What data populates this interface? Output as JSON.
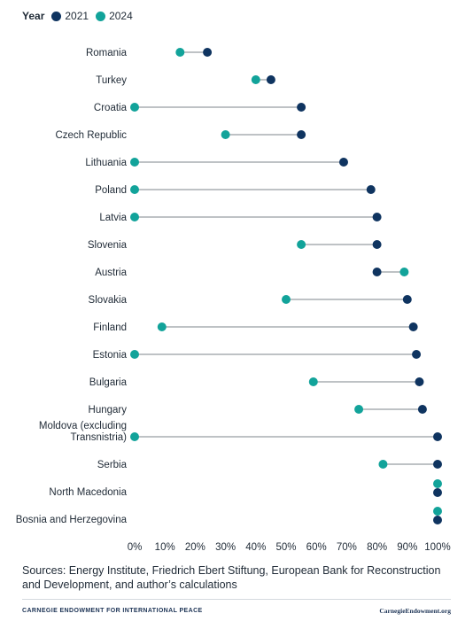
{
  "legend": {
    "title": "Year",
    "items": [
      {
        "label": "2021",
        "color": "#0f3460"
      },
      {
        "label": "2024",
        "color": "#12a39a"
      }
    ]
  },
  "chart_data": {
    "type": "dumbbell",
    "xlabel": "",
    "ylabel": "",
    "xlim": [
      0,
      100
    ],
    "x_ticks": [
      "0%",
      "10%",
      "20%",
      "30%",
      "40%",
      "50%",
      "60%",
      "70%",
      "80%",
      "90%",
      "100%"
    ],
    "grid": false,
    "legend_position": "top-left",
    "series": [
      {
        "name": "2021",
        "color": "#0f3460"
      },
      {
        "name": "2024",
        "color": "#12a39a"
      }
    ],
    "categories": [
      {
        "label": [
          "Romania"
        ],
        "v2021": 24,
        "v2024": 15
      },
      {
        "label": [
          "Turkey"
        ],
        "v2021": 45,
        "v2024": 40
      },
      {
        "label": [
          "Croatia"
        ],
        "v2021": 55,
        "v2024": 0
      },
      {
        "label": [
          "Czech Republic"
        ],
        "v2021": 55,
        "v2024": 30
      },
      {
        "label": [
          "Lithuania"
        ],
        "v2021": 69,
        "v2024": 0
      },
      {
        "label": [
          "Poland"
        ],
        "v2021": 78,
        "v2024": 0
      },
      {
        "label": [
          "Latvia"
        ],
        "v2021": 80,
        "v2024": 0
      },
      {
        "label": [
          "Slovenia"
        ],
        "v2021": 80,
        "v2024": 55
      },
      {
        "label": [
          "Austria"
        ],
        "v2021": 80,
        "v2024": 89
      },
      {
        "label": [
          "Slovakia"
        ],
        "v2021": 90,
        "v2024": 50
      },
      {
        "label": [
          "Finland"
        ],
        "v2021": 92,
        "v2024": 9
      },
      {
        "label": [
          "Estonia"
        ],
        "v2021": 93,
        "v2024": 0
      },
      {
        "label": [
          "Bulgaria"
        ],
        "v2021": 94,
        "v2024": 59
      },
      {
        "label": [
          "Hungary"
        ],
        "v2021": 95,
        "v2024": 74
      },
      {
        "label": [
          "Moldova (excluding",
          "Transnistria)"
        ],
        "v2021": 100,
        "v2024": 0
      },
      {
        "label": [
          "Serbia"
        ],
        "v2021": 100,
        "v2024": 82
      },
      {
        "label": [
          "North Macedonia"
        ],
        "v2021": 100,
        "v2024": 100
      },
      {
        "label": [
          "Bosnia and Herzegovina"
        ],
        "v2021": 100,
        "v2024": 100
      }
    ]
  },
  "footnote": "Sources: Energy Institute, Friedrich Ebert Stiftung, European Bank for Reconstruction and Development, and author’s calculations",
  "footer": {
    "brand": "CARNEGIE ENDOWMENT FOR INTERNATIONAL PEACE",
    "site": "CarnegieEndowment.org"
  }
}
